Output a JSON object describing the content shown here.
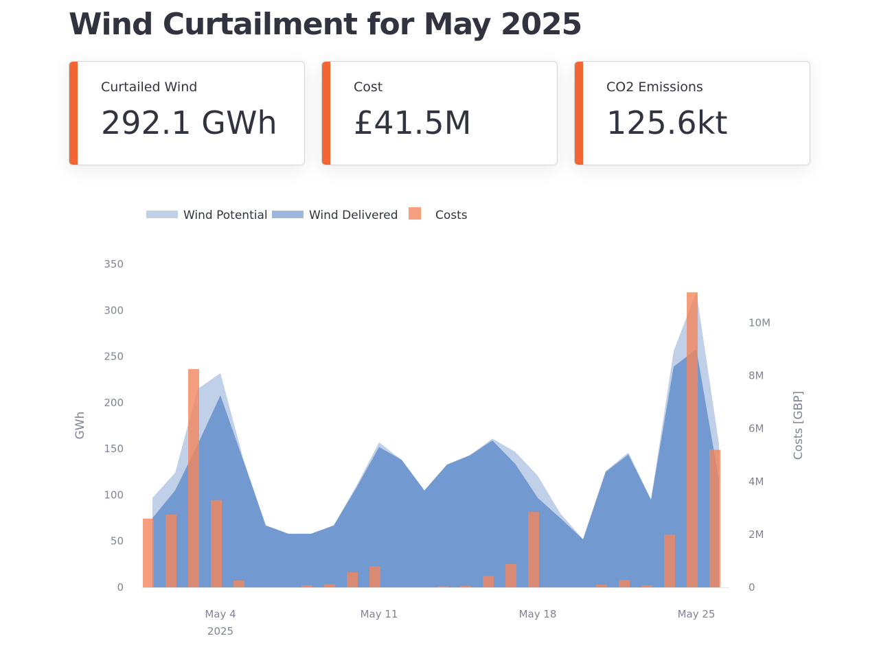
{
  "page": {
    "title": "Wind Curtailment for May 2025"
  },
  "cards": [
    {
      "label": "Curtailed Wind",
      "value": "292.1 GWh",
      "accent": "#f26633"
    },
    {
      "label": "Cost",
      "value": "£41.5M",
      "accent": "#f26633"
    },
    {
      "label": "CO2 Emissions",
      "value": "125.6kt",
      "accent": "#f26633"
    }
  ],
  "chart_data": {
    "type": "area",
    "x": [
      1,
      2,
      3,
      4,
      5,
      6,
      7,
      8,
      9,
      10,
      11,
      12,
      13,
      14,
      15,
      16,
      17,
      18,
      19,
      20,
      21,
      22,
      23,
      24,
      25,
      26
    ],
    "x_ticks": [
      {
        "day": 4,
        "label": "May 4",
        "sublabel": "2025"
      },
      {
        "day": 11,
        "label": "May 11"
      },
      {
        "day": 18,
        "label": "May 18"
      },
      {
        "day": 25,
        "label": "May 25"
      }
    ],
    "ylabel": "GWh",
    "ylim": [
      0,
      350
    ],
    "yticks": [
      0,
      50,
      100,
      150,
      200,
      250,
      300,
      350
    ],
    "y2label": "Costs [GBP]",
    "y2lim": [
      0,
      11800000
    ],
    "y2ticks": [
      {
        "value": 0,
        "label": "0"
      },
      {
        "value": 2000000,
        "label": "2M"
      },
      {
        "value": 4000000,
        "label": "4M"
      },
      {
        "value": 6000000,
        "label": "6M"
      },
      {
        "value": 8000000,
        "label": "8M"
      },
      {
        "value": 10000000,
        "label": "10M"
      }
    ],
    "legend": {
      "placement": "top-left"
    },
    "series": [
      {
        "name": "Wind Potential",
        "kind": "area",
        "axis": "left",
        "color": "#c0d0e8",
        "values": [
          97,
          124,
          215,
          232,
          140,
          67,
          58,
          58,
          67,
          110,
          157,
          138,
          105,
          133,
          143,
          161,
          147,
          121,
          80,
          52,
          126,
          146,
          95,
          256,
          320,
          155
        ]
      },
      {
        "name": "Wind Delivered",
        "kind": "area",
        "axis": "left",
        "color": "#7099cf",
        "values": [
          75,
          105,
          155,
          208,
          138,
          67,
          58,
          58,
          67,
          108,
          152,
          138,
          105,
          133,
          143,
          159,
          134,
          97,
          75,
          52,
          125,
          144,
          95,
          239,
          258,
          116
        ]
      },
      {
        "name": "Costs",
        "kind": "bar",
        "axis": "right",
        "color": "#f2865e",
        "values": [
          2600000,
          2750000,
          8250000,
          3300000,
          260000,
          0,
          0,
          80000,
          110000,
          570000,
          800000,
          0,
          0,
          40000,
          60000,
          430000,
          880000,
          2850000,
          0,
          0,
          100000,
          280000,
          80000,
          2000000,
          11150000,
          5200000
        ]
      }
    ]
  }
}
